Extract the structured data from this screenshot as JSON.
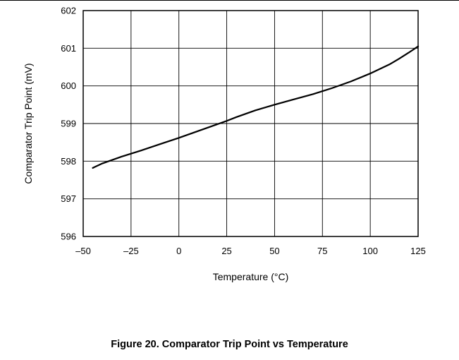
{
  "chart_data": {
    "type": "line",
    "xlabel": "Temperature (°C)",
    "ylabel": "Comparator Trip Point (mV)",
    "xlim": [
      -50,
      125
    ],
    "ylim": [
      596,
      602
    ],
    "x_ticks": [
      -50,
      -25,
      0,
      25,
      50,
      75,
      100,
      125
    ],
    "x_tick_labels": [
      "–50",
      "–25",
      "0",
      "25",
      "50",
      "75",
      "100",
      "125"
    ],
    "y_ticks": [
      596,
      597,
      598,
      599,
      600,
      601,
      602
    ],
    "y_tick_labels": [
      "596",
      "597",
      "598",
      "599",
      "600",
      "601",
      "602"
    ],
    "grid": true,
    "series": [
      {
        "color": "#000000",
        "x": [
          -45,
          -40,
          -30,
          -20,
          -10,
          0,
          10,
          20,
          25,
          30,
          40,
          50,
          60,
          70,
          80,
          90,
          100,
          110,
          115,
          120,
          125
        ],
        "y": [
          597.82,
          597.94,
          598.12,
          598.28,
          598.45,
          598.62,
          598.8,
          598.98,
          599.07,
          599.17,
          599.35,
          599.5,
          599.64,
          599.78,
          599.94,
          600.12,
          600.33,
          600.57,
          600.72,
          600.88,
          601.05
        ]
      }
    ]
  },
  "caption": "Figure 20. Comparator Trip Point vs Temperature"
}
